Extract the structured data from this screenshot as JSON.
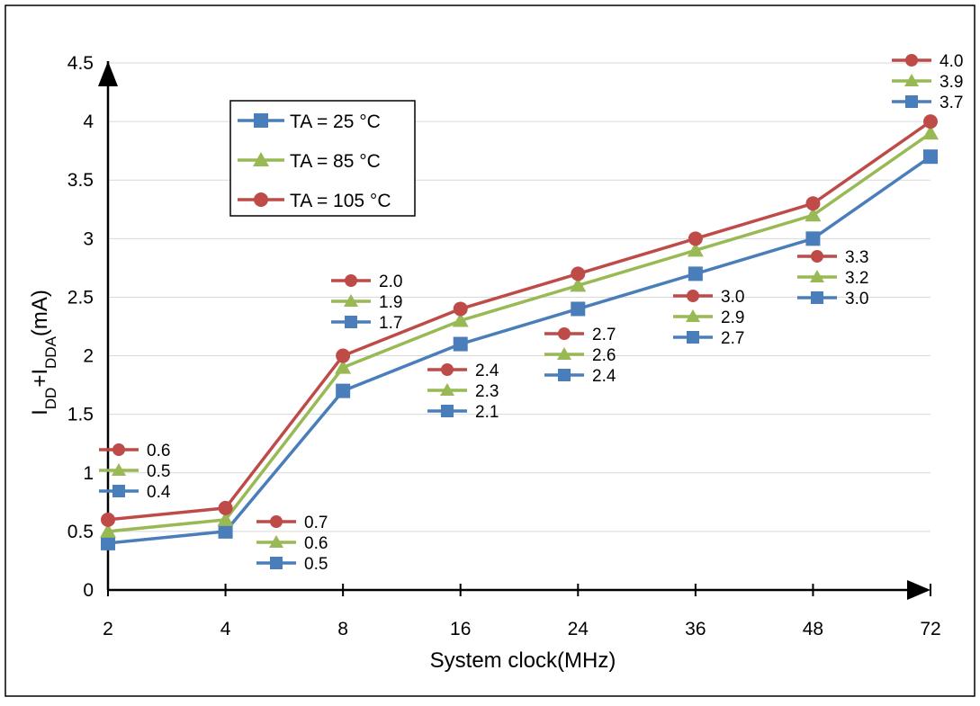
{
  "chart_data": {
    "type": "line",
    "xlabel": "System clock(MHz)",
    "ylabel": {
      "main": "I",
      "sub1": "DD",
      "mid": "+I",
      "sub2": "DDA",
      "tail": "(mA)"
    },
    "categories": [
      "2",
      "4",
      "8",
      "16",
      "24",
      "36",
      "48",
      "72"
    ],
    "ylim": [
      0,
      4.5
    ],
    "yticks": [
      "0",
      "0.5",
      "1",
      "1.5",
      "2",
      "2.5",
      "3",
      "3.5",
      "4",
      "4.5"
    ],
    "grid": true,
    "legend_position": "top-left",
    "series": [
      {
        "name": "TA = 25 °C",
        "color": "#4a7ebb",
        "marker": "square",
        "values": [
          0.4,
          0.5,
          1.7,
          2.1,
          2.4,
          2.7,
          3.0,
          3.7
        ],
        "labels": [
          "0.4",
          "0.5",
          "1.7",
          "2.1",
          "2.4",
          "2.7",
          "3.0",
          "3.7"
        ]
      },
      {
        "name": "TA = 85 °C",
        "color": "#98b954",
        "marker": "triangle",
        "values": [
          0.5,
          0.6,
          1.9,
          2.3,
          2.6,
          2.9,
          3.2,
          3.9
        ],
        "labels": [
          "0.5",
          "0.6",
          "1.9",
          "2.3",
          "2.6",
          "2.9",
          "3.2",
          "3.9"
        ]
      },
      {
        "name": "TA = 105 °C",
        "color": "#be4b48",
        "marker": "circle",
        "values": [
          0.6,
          0.7,
          2.0,
          2.4,
          2.7,
          3.0,
          3.3,
          4.0
        ],
        "labels": [
          "0.6",
          "0.7",
          "2.0",
          "2.4",
          "2.7",
          "3.0",
          "3.3",
          "4.0"
        ]
      }
    ]
  }
}
